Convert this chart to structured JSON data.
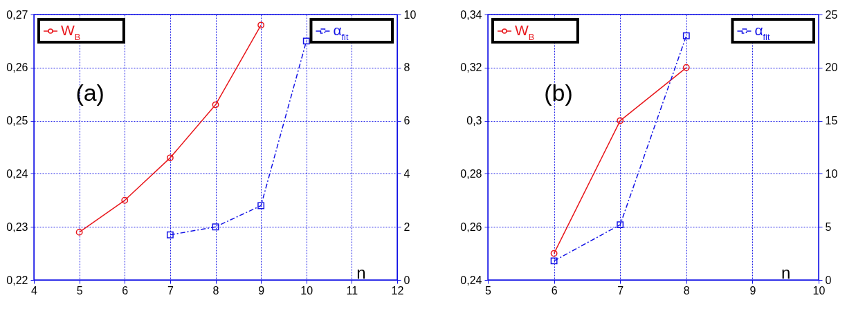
{
  "chart_data": [
    {
      "type": "line",
      "xlabel": "n",
      "annotations": [
        "(a)"
      ],
      "xlim": [
        4,
        12
      ],
      "xticks": [
        4,
        5,
        6,
        7,
        8,
        9,
        10,
        11,
        12
      ],
      "ylim": [
        0.22,
        0.27
      ],
      "yticks": [
        {
          "value": 0.22,
          "label": "0,22"
        },
        {
          "value": 0.23,
          "label": "0,23"
        },
        {
          "value": 0.24,
          "label": "0,24"
        },
        {
          "value": 0.25,
          "label": "0,25"
        },
        {
          "value": 0.26,
          "label": "0,26"
        },
        {
          "value": 0.27,
          "label": "0,27"
        }
      ],
      "y2lim": [
        0,
        10
      ],
      "y2ticks": [
        0,
        2,
        4,
        6,
        8,
        10
      ],
      "grid": true,
      "legend": "top",
      "series": [
        {
          "name": "W$_{B}$",
          "color": "#e8161b",
          "x": [
            5,
            6,
            7,
            8,
            9
          ],
          "values": [
            0.229,
            0.235,
            0.243,
            0.253,
            0.268
          ],
          "marker": "circle",
          "line_style": "solid"
        },
        {
          "name": "α$_{fit}$",
          "color": "#1414e6",
          "axis": "y2",
          "x": [
            7,
            8,
            9,
            10
          ],
          "values": [
            1.7,
            2.0,
            2.8,
            9.0
          ],
          "marker": "square",
          "line_style": "dashed"
        }
      ]
    },
    {
      "type": "line",
      "xlabel": "n",
      "annotations": [
        "(b)"
      ],
      "xlim": [
        5,
        10
      ],
      "xticks": [
        5,
        6,
        7,
        8,
        9,
        10
      ],
      "ylim": [
        0.24,
        0.34
      ],
      "yticks": [
        {
          "value": 0.24,
          "label": "0,24"
        },
        {
          "value": 0.26,
          "label": "0,26"
        },
        {
          "value": 0.28,
          "label": "0,28"
        },
        {
          "value": 0.3,
          "label": "0,3"
        },
        {
          "value": 0.32,
          "label": "0,32"
        },
        {
          "value": 0.34,
          "label": "0,34"
        }
      ],
      "y2lim": [
        0,
        25
      ],
      "y2ticks": [
        0,
        5,
        10,
        15,
        20,
        25
      ],
      "grid": true,
      "legend": "top",
      "series": [
        {
          "name": "W$_{B}$",
          "color": "#e8161b",
          "x": [
            6,
            7,
            8
          ],
          "values": [
            0.25,
            0.3,
            0.32
          ],
          "marker": "circle",
          "line_style": "solid"
        },
        {
          "name": "α$_{fit}$",
          "color": "#1414e6",
          "axis": "y2",
          "x": [
            6,
            7,
            8
          ],
          "values": [
            1.8,
            5.2,
            23
          ],
          "marker": "square",
          "line_style": "dashed"
        }
      ]
    }
  ]
}
